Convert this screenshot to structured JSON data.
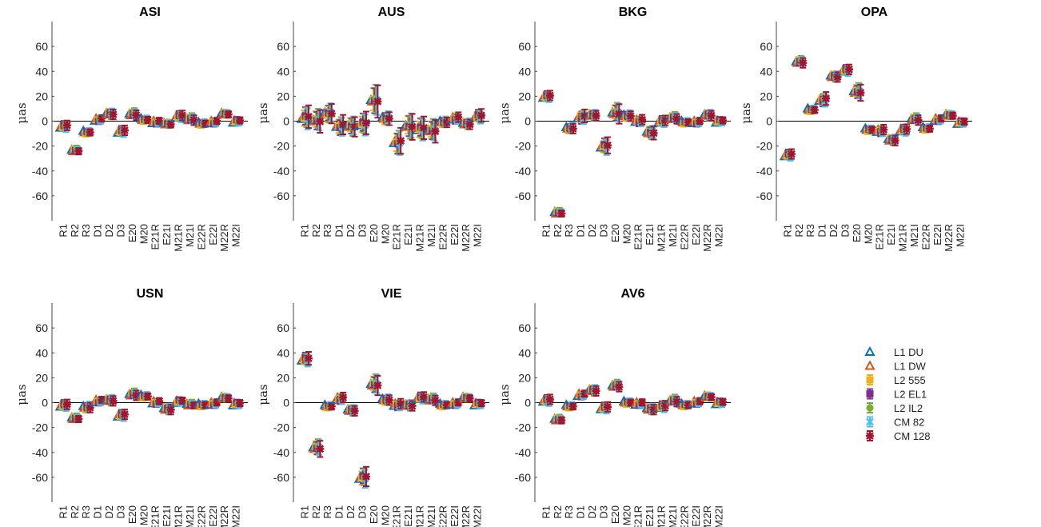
{
  "chart_data": {
    "type": "scatter",
    "categories": [
      "R1",
      "R2",
      "R3",
      "D1",
      "D2",
      "D3",
      "E20",
      "M20",
      "E21R",
      "E21I",
      "M21R",
      "M21I",
      "E22R",
      "E22I",
      "M22R",
      "M22I"
    ],
    "ylabel": "μas",
    "ylim": [
      -80,
      80
    ],
    "yticks": [
      -60,
      -40,
      -20,
      0,
      20,
      40,
      60
    ],
    "legend": {
      "placement": "right",
      "entries": [
        {
          "name": "L1 DU",
          "color": "#0072BD",
          "marker": "triangle-open"
        },
        {
          "name": "L1 DW",
          "color": "#D95319",
          "marker": "triangle-open"
        },
        {
          "name": "L2 555",
          "color": "#EDB120",
          "marker": "square"
        },
        {
          "name": "L2 EL1",
          "color": "#7E2F8E",
          "marker": "square"
        },
        {
          "name": "L2 IL2",
          "color": "#77AC30",
          "marker": "circle"
        },
        {
          "name": "CM 82",
          "color": "#4DBEEE",
          "marker": "x"
        },
        {
          "name": "CM 128",
          "color": "#A2142F",
          "marker": "star"
        }
      ]
    },
    "panels": [
      {
        "title": "ASI",
        "values": [
          -4,
          -23,
          -9,
          1,
          6,
          -8,
          6,
          1,
          -1,
          -2,
          4,
          2,
          -2,
          -1,
          6,
          0
        ],
        "errors": [
          3,
          2,
          2,
          2,
          3,
          3,
          3,
          2,
          2,
          2,
          3,
          3,
          2,
          2,
          2,
          2
        ]
      },
      {
        "title": "AUS",
        "values": [
          3,
          1,
          6,
          -4,
          -4,
          -2,
          17,
          2,
          -17,
          -4,
          -6,
          -7,
          -1,
          2,
          -2,
          4
        ],
        "errors": [
          7,
          7,
          6,
          6,
          6,
          7,
          10,
          4,
          8,
          8,
          7,
          7,
          3,
          3,
          3,
          4
        ]
      },
      {
        "title": "BKG",
        "values": [
          20,
          -73,
          -6,
          3,
          5,
          -20,
          7,
          4,
          0,
          -9,
          0,
          3,
          -1,
          -1,
          5,
          0
        ],
        "errors": [
          3,
          2,
          3,
          4,
          3,
          5,
          6,
          3,
          3,
          4,
          3,
          3,
          2,
          2,
          3,
          2
        ]
      },
      {
        "title": "OPA",
        "values": [
          -27,
          48,
          9,
          17,
          36,
          41,
          24,
          -7,
          -8,
          -15,
          -7,
          2,
          -6,
          1,
          5,
          -1
        ],
        "errors": [
          3,
          3,
          2,
          4,
          3,
          3,
          5,
          2,
          3,
          3,
          3,
          3,
          2,
          2,
          2,
          2
        ]
      },
      {
        "title": "USN",
        "values": [
          -2,
          -12,
          -4,
          1,
          2,
          -10,
          7,
          5,
          0,
          -5,
          1,
          -1,
          -2,
          -1,
          4,
          -1
        ],
        "errors": [
          3,
          2,
          3,
          2,
          3,
          3,
          3,
          2,
          2,
          3,
          2,
          2,
          2,
          2,
          2,
          2
        ]
      },
      {
        "title": "VIE",
        "values": [
          35,
          -36,
          -3,
          3,
          -6,
          -60,
          15,
          2,
          -2,
          -2,
          4,
          3,
          -2,
          -1,
          4,
          -1
        ],
        "errors": [
          4,
          5,
          2,
          3,
          3,
          6,
          6,
          3,
          3,
          3,
          3,
          3,
          2,
          2,
          2,
          2
        ]
      },
      {
        "title": "AV6",
        "values": [
          2,
          -13,
          -3,
          6,
          10,
          -4,
          14,
          0,
          -1,
          -5,
          -3,
          2,
          -2,
          0,
          5,
          0
        ],
        "errors": [
          3,
          2,
          2,
          2,
          3,
          3,
          3,
          2,
          2,
          3,
          3,
          3,
          2,
          2,
          2,
          2
        ]
      }
    ]
  }
}
